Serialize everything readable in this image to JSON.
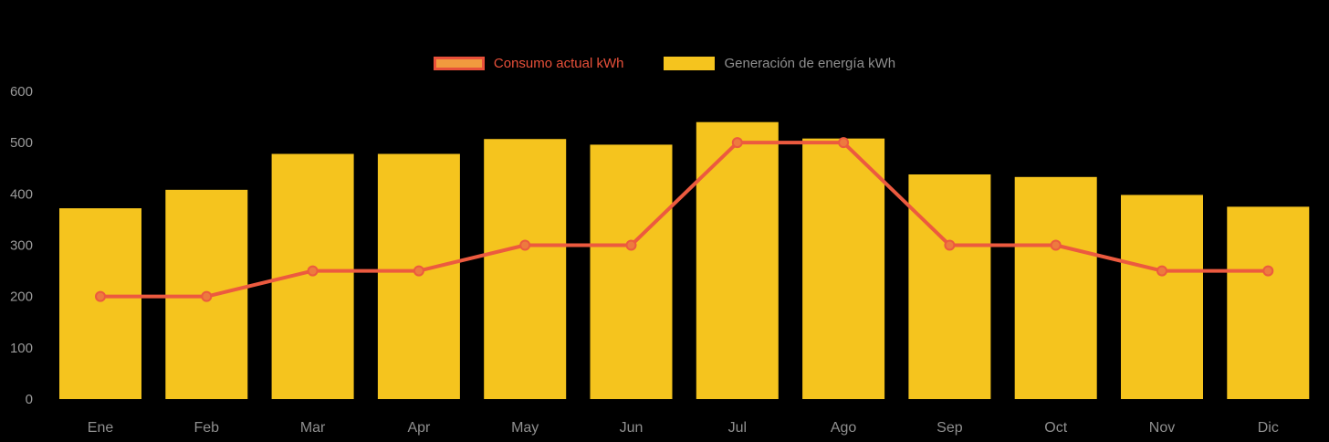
{
  "chart_data": {
    "type": "composed",
    "title": "",
    "categories": [
      "Ene",
      "Feb",
      "Mar",
      "Apr",
      "May",
      "Jun",
      "Jul",
      "Ago",
      "Sep",
      "Oct",
      "Nov",
      "Dic"
    ],
    "yticks": [
      0,
      100,
      200,
      300,
      400,
      500,
      600
    ],
    "ylim": [
      0,
      600
    ],
    "grid": false,
    "legend_position": "top-center",
    "series": [
      {
        "name": "Consumo actual kWh",
        "type": "line",
        "color": "#EC5A3F",
        "dot_fill": "#ED7A3E",
        "values": [
          200,
          200,
          250,
          250,
          300,
          300,
          500,
          500,
          300,
          300,
          250,
          250
        ]
      },
      {
        "name": "Generación de energía kWh",
        "type": "bar",
        "color": "#F5C41E",
        "values": [
          372,
          408,
          478,
          478,
          507,
          496,
          540,
          508,
          438,
          433,
          398,
          375
        ]
      }
    ],
    "colors": {
      "background": "#000000",
      "axis_text": "#9A9A9A",
      "month_text": "#8F8F8F",
      "legend_consumo_text": "#E8503A",
      "legend_generacion_text": "#8F8F8F",
      "legend_consumo_fill": "#F19A3E",
      "legend_consumo_border": "#E8503A"
    }
  }
}
